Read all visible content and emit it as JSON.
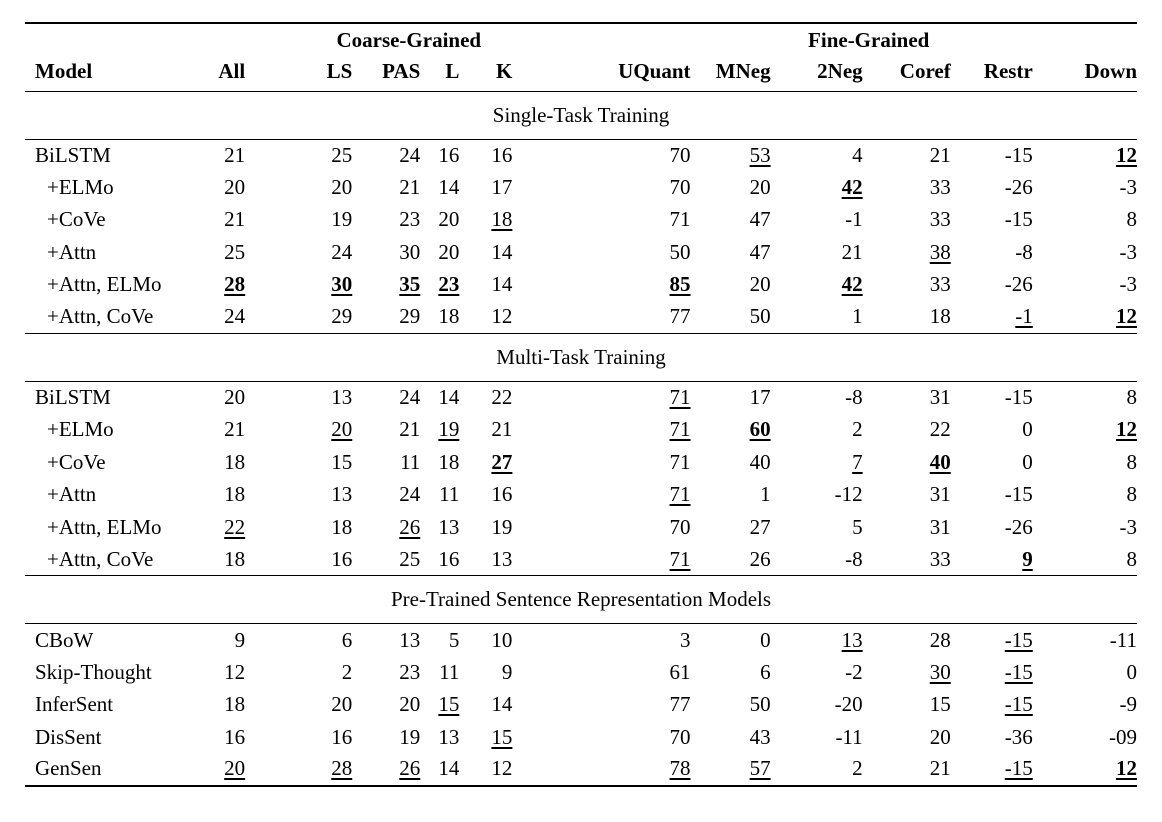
{
  "colors": {
    "text": "#000000",
    "background": "#ffffff",
    "rule": "#000000"
  },
  "table": {
    "groups": {
      "coarse": "Coarse-Grained",
      "fine": "Fine-Grained"
    },
    "columns": [
      "Model",
      "All",
      "LS",
      "PAS",
      "L",
      "K",
      "UQuant",
      "MNeg",
      "2Neg",
      "Coref",
      "Restr",
      "Down"
    ],
    "sections": [
      {
        "title": "Single-Task Training",
        "rows": [
          {
            "model": "BiLSTM",
            "indent": false,
            "values": [
              {
                "v": "21"
              },
              {
                "v": "25"
              },
              {
                "v": "24"
              },
              {
                "v": "16"
              },
              {
                "v": "16"
              },
              {
                "v": "70"
              },
              {
                "v": "53",
                "u": true
              },
              {
                "v": "4"
              },
              {
                "v": "21"
              },
              {
                "v": "-15"
              },
              {
                "v": "12",
                "b": true,
                "u": true
              }
            ]
          },
          {
            "model": "+ELMo",
            "indent": true,
            "values": [
              {
                "v": "20"
              },
              {
                "v": "20"
              },
              {
                "v": "21"
              },
              {
                "v": "14"
              },
              {
                "v": "17"
              },
              {
                "v": "70"
              },
              {
                "v": "20"
              },
              {
                "v": "42",
                "b": true,
                "u": true
              },
              {
                "v": "33"
              },
              {
                "v": "-26"
              },
              {
                "v": "-3"
              }
            ]
          },
          {
            "model": "+CoVe",
            "indent": true,
            "values": [
              {
                "v": "21"
              },
              {
                "v": "19"
              },
              {
                "v": "23"
              },
              {
                "v": "20"
              },
              {
                "v": "18",
                "u": true
              },
              {
                "v": "71"
              },
              {
                "v": "47"
              },
              {
                "v": "-1"
              },
              {
                "v": "33"
              },
              {
                "v": "-15"
              },
              {
                "v": "8"
              }
            ]
          },
          {
            "model": "+Attn",
            "indent": true,
            "values": [
              {
                "v": "25"
              },
              {
                "v": "24"
              },
              {
                "v": "30"
              },
              {
                "v": "20"
              },
              {
                "v": "14"
              },
              {
                "v": "50"
              },
              {
                "v": "47"
              },
              {
                "v": "21"
              },
              {
                "v": "38",
                "u": true
              },
              {
                "v": "-8"
              },
              {
                "v": "-3"
              }
            ]
          },
          {
            "model": "+Attn, ELMo",
            "indent": true,
            "values": [
              {
                "v": "28",
                "b": true,
                "u": true
              },
              {
                "v": "30",
                "b": true,
                "u": true
              },
              {
                "v": "35",
                "b": true,
                "u": true
              },
              {
                "v": "23",
                "b": true,
                "u": true
              },
              {
                "v": "14"
              },
              {
                "v": "85",
                "b": true,
                "u": true
              },
              {
                "v": "20"
              },
              {
                "v": "42",
                "b": true,
                "u": true
              },
              {
                "v": "33"
              },
              {
                "v": "-26"
              },
              {
                "v": "-3"
              }
            ]
          },
          {
            "model": "+Attn, CoVe",
            "indent": true,
            "values": [
              {
                "v": "24"
              },
              {
                "v": "29"
              },
              {
                "v": "29"
              },
              {
                "v": "18"
              },
              {
                "v": "12"
              },
              {
                "v": "77"
              },
              {
                "v": "50"
              },
              {
                "v": "1"
              },
              {
                "v": "18"
              },
              {
                "v": "-1",
                "u": true
              },
              {
                "v": "12",
                "b": true,
                "u": true
              }
            ]
          }
        ]
      },
      {
        "title": "Multi-Task Training",
        "rows": [
          {
            "model": "BiLSTM",
            "indent": false,
            "values": [
              {
                "v": "20"
              },
              {
                "v": "13"
              },
              {
                "v": "24"
              },
              {
                "v": "14"
              },
              {
                "v": "22"
              },
              {
                "v": "71",
                "u": true
              },
              {
                "v": "17"
              },
              {
                "v": "-8"
              },
              {
                "v": "31"
              },
              {
                "v": "-15"
              },
              {
                "v": "8"
              }
            ]
          },
          {
            "model": "+ELMo",
            "indent": true,
            "values": [
              {
                "v": "21"
              },
              {
                "v": "20",
                "u": true
              },
              {
                "v": "21"
              },
              {
                "v": "19",
                "u": true
              },
              {
                "v": "21"
              },
              {
                "v": "71",
                "u": true
              },
              {
                "v": "60",
                "b": true,
                "u": true
              },
              {
                "v": "2"
              },
              {
                "v": "22"
              },
              {
                "v": "0"
              },
              {
                "v": "12",
                "b": true,
                "u": true
              }
            ]
          },
          {
            "model": "+CoVe",
            "indent": true,
            "values": [
              {
                "v": "18"
              },
              {
                "v": "15"
              },
              {
                "v": "11"
              },
              {
                "v": "18"
              },
              {
                "v": "27",
                "b": true,
                "u": true
              },
              {
                "v": "71"
              },
              {
                "v": "40"
              },
              {
                "v": "7",
                "u": true
              },
              {
                "v": "40",
                "b": true,
                "u": true
              },
              {
                "v": "0"
              },
              {
                "v": "8"
              }
            ]
          },
          {
            "model": "+Attn",
            "indent": true,
            "values": [
              {
                "v": "18"
              },
              {
                "v": "13"
              },
              {
                "v": "24"
              },
              {
                "v": "11"
              },
              {
                "v": "16"
              },
              {
                "v": "71",
                "u": true
              },
              {
                "v": "1"
              },
              {
                "v": "-12"
              },
              {
                "v": "31"
              },
              {
                "v": "-15"
              },
              {
                "v": "8"
              }
            ]
          },
          {
            "model": "+Attn, ELMo",
            "indent": true,
            "values": [
              {
                "v": "22",
                "u": true
              },
              {
                "v": "18"
              },
              {
                "v": "26",
                "u": true
              },
              {
                "v": "13"
              },
              {
                "v": "19"
              },
              {
                "v": "70"
              },
              {
                "v": "27"
              },
              {
                "v": "5"
              },
              {
                "v": "31"
              },
              {
                "v": "-26"
              },
              {
                "v": "-3"
              }
            ]
          },
          {
            "model": "+Attn, CoVe",
            "indent": true,
            "values": [
              {
                "v": "18"
              },
              {
                "v": "16"
              },
              {
                "v": "25"
              },
              {
                "v": "16"
              },
              {
                "v": "13"
              },
              {
                "v": "71",
                "u": true
              },
              {
                "v": "26"
              },
              {
                "v": "-8"
              },
              {
                "v": "33"
              },
              {
                "v": "9",
                "b": true,
                "u": true
              },
              {
                "v": "8"
              }
            ]
          }
        ]
      },
      {
        "title": "Pre-Trained Sentence Representation Models",
        "rows": [
          {
            "model": "CBoW",
            "indent": false,
            "values": [
              {
                "v": "9"
              },
              {
                "v": "6"
              },
              {
                "v": "13"
              },
              {
                "v": "5"
              },
              {
                "v": "10"
              },
              {
                "v": "3"
              },
              {
                "v": "0"
              },
              {
                "v": "13",
                "u": true
              },
              {
                "v": "28"
              },
              {
                "v": "-15",
                "u": true
              },
              {
                "v": "-11"
              }
            ]
          },
          {
            "model": "Skip-Thought",
            "indent": false,
            "values": [
              {
                "v": "12"
              },
              {
                "v": "2"
              },
              {
                "v": "23"
              },
              {
                "v": "11"
              },
              {
                "v": "9"
              },
              {
                "v": "61"
              },
              {
                "v": "6"
              },
              {
                "v": "-2"
              },
              {
                "v": "30",
                "u": true
              },
              {
                "v": "-15",
                "u": true
              },
              {
                "v": "0"
              }
            ]
          },
          {
            "model": "InferSent",
            "indent": false,
            "values": [
              {
                "v": "18"
              },
              {
                "v": "20"
              },
              {
                "v": "20"
              },
              {
                "v": "15",
                "u": true
              },
              {
                "v": "14"
              },
              {
                "v": "77"
              },
              {
                "v": "50"
              },
              {
                "v": "-20"
              },
              {
                "v": "15"
              },
              {
                "v": "-15",
                "u": true
              },
              {
                "v": "-9"
              }
            ]
          },
          {
            "model": "DisSent",
            "indent": false,
            "values": [
              {
                "v": "16"
              },
              {
                "v": "16"
              },
              {
                "v": "19"
              },
              {
                "v": "13"
              },
              {
                "v": "15",
                "u": true
              },
              {
                "v": "70"
              },
              {
                "v": "43"
              },
              {
                "v": "-11"
              },
              {
                "v": "20"
              },
              {
                "v": "-36"
              },
              {
                "v": "-09"
              }
            ]
          },
          {
            "model": "GenSen",
            "indent": false,
            "values": [
              {
                "v": "20",
                "u": true
              },
              {
                "v": "28",
                "u": true
              },
              {
                "v": "26",
                "u": true
              },
              {
                "v": "14"
              },
              {
                "v": "12"
              },
              {
                "v": "78",
                "u": true
              },
              {
                "v": "57",
                "u": true
              },
              {
                "v": "2"
              },
              {
                "v": "21"
              },
              {
                "v": "-15",
                "u": true
              },
              {
                "v": "12",
                "b": true,
                "u": true
              }
            ]
          }
        ]
      }
    ]
  }
}
